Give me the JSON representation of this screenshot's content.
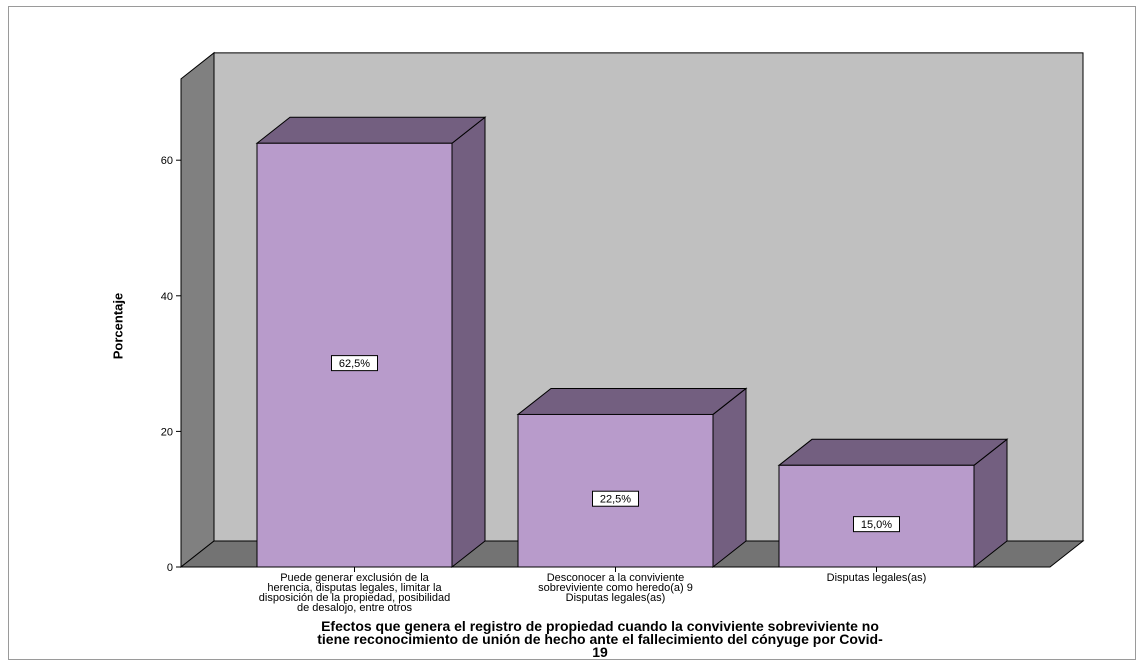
{
  "chart_data": {
    "type": "bar",
    "ylabel": "Porcentaje",
    "xlabel": "Efectos que genera el registro de propiedad cuando la conviviente sobreviviente no tiene reconocimiento de unión de hecho ante el fallecimiento del cónyuge por Covid-19",
    "xlabel_lines": [
      "Efectos que genera el registro de propiedad cuando la conviviente sobreviviente no",
      "tiene reconocimiento de unión de hecho ante el fallecimiento del cónyuge por Covid-",
      "19"
    ],
    "categories": [
      {
        "label_lines": [
          "Puede generar exclusión de la",
          "herencia, disputas legales, limitar la",
          "disposición de la propiedad, posibilidad",
          "de desalojo, entre otros"
        ]
      },
      {
        "label_lines": [
          "Desconocer a la conviviente",
          "sobreviviente como heredo(a) 9",
          "Disputas legales(as)"
        ]
      },
      {
        "label_lines": [
          "Disputas legales(as)"
        ]
      }
    ],
    "values": [
      62.5,
      22.5,
      15.0
    ],
    "data_labels": [
      "62,5%",
      "22,5%",
      "15,0%"
    ],
    "ylim": [
      0,
      72
    ],
    "yticks": [
      0,
      20,
      40,
      60
    ],
    "grid": false,
    "colors": {
      "bar_front": "#b89bcb",
      "bar_top": "#735f80",
      "bar_side": "#735f80",
      "wall": "#c0c0c0",
      "left_wall": "#808080",
      "floor": "#737373",
      "edge": "#000000"
    }
  }
}
